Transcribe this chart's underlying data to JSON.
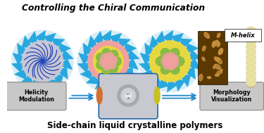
{
  "title": "Controlling the Chiral Communication",
  "subtitle": "Side-chain liquid crystalline polymers",
  "mhelix_label": "M-helix",
  "helicity_label": "Helicity\nModulation",
  "morphology_label": "Morphology\nVisualization",
  "bg_color": "#ffffff",
  "title_color": "#000000",
  "subtitle_color": "#000000",
  "blue_spike_color": "#29a8e0",
  "spike_glow_color": "#b8dff0",
  "sphere1_core_color": "#c8c8d4",
  "sphere1_pattern_color": "#2244bb",
  "sphere2_core_color": "#f0a0a0",
  "sphere2_green_color": "#88bb44",
  "sphere2_yellow_color": "#e8d840",
  "sphere3_core_color": "#f0a0a0",
  "sphere3_yellow_color": "#e8d840",
  "sphere3_green_color": "#88bb44",
  "box_edge_color": "#2266aa",
  "arrow_color": "#2288cc",
  "helix_color": "#e8e0a0",
  "helix_dark": "#c8b870",
  "label_box_color": "#c8c8c8",
  "label_box_edge": "#888888",
  "afm_bg": "#5a3800",
  "afm_bright": "#c89040",
  "instr_color": "#c8c8d0",
  "instr_edge": "#6688aa",
  "pol_left_color": "#d07030",
  "pol_right_color": "#c8c020",
  "knob_outer": "#a8a8b0",
  "knob_mid": "#d0d0d8",
  "knob_inner": "#e8e8f0"
}
